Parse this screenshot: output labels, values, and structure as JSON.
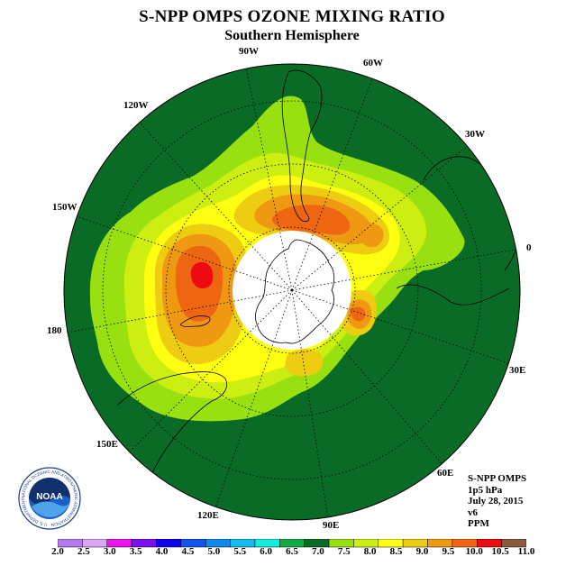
{
  "header": {
    "title": "S-NPP OMPS OZONE MIXING RATIO",
    "subtitle": "Southern Hemisphere"
  },
  "map": {
    "projection": "south-polar-stereographic",
    "longitude_labels": [
      {
        "text": "0",
        "lon": 0
      },
      {
        "text": "30W",
        "lon": -30
      },
      {
        "text": "60W",
        "lon": -60
      },
      {
        "text": "90W",
        "lon": -90
      },
      {
        "text": "120W",
        "lon": -120
      },
      {
        "text": "150W",
        "lon": -150
      },
      {
        "text": "180",
        "lon": 180
      },
      {
        "text": "150E",
        "lon": 150
      },
      {
        "text": "120E",
        "lon": 120
      },
      {
        "text": "90E",
        "lon": 90
      },
      {
        "text": "60E",
        "lon": 60
      },
      {
        "text": "30E",
        "lon": 30
      }
    ],
    "colors": {
      "background_field": "#0a6b26",
      "polar_night": "#ffffff",
      "coastline": "#000000"
    }
  },
  "info": {
    "instrument": "S-NPP OMPS",
    "level": "1p5 hPa",
    "date": "July 28, 2015",
    "version": "v6",
    "units": "PPM"
  },
  "logo": {
    "text": "NOAA",
    "ring_text": "NATIONAL OCEANIC AND ATMOSPHERIC ADMINISTRATION · U.S. DEPARTMENT OF COMMERCE"
  },
  "colorbar": {
    "labels": [
      "2.0",
      "2.5",
      "3.0",
      "3.5",
      "4.0",
      "4.5",
      "5.0",
      "5.5",
      "6.0",
      "6.5",
      "7.0",
      "7.5",
      "8.0",
      "8.5",
      "9.0",
      "9.5",
      "10.0",
      "10.5",
      "11.0"
    ],
    "colors": [
      "#b57aee",
      "#d9a6f4",
      "#ee12ee",
      "#7a11ee",
      "#1100ee",
      "#1155ee",
      "#1188ee",
      "#11bbee",
      "#11eedd",
      "#11aa44",
      "#0a6b26",
      "#99e011",
      "#ccee11",
      "#ffff11",
      "#eecc11",
      "#ee9911",
      "#ee6611",
      "#ee0a11",
      "#8b5a3c"
    ]
  }
}
